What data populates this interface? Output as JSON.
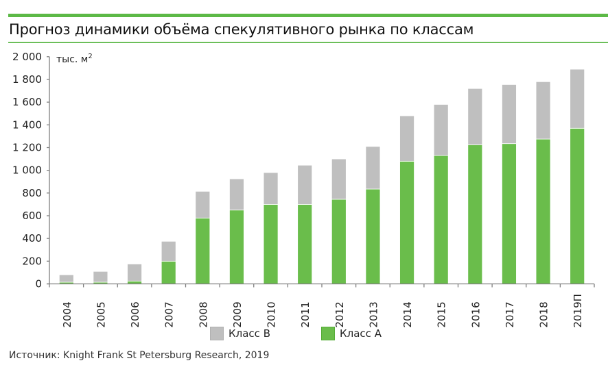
{
  "chart_data": {
    "type": "bar",
    "stacked": true,
    "title": "Прогноз динамики объёма спекулятивного рынка по классам",
    "ylabel": "тыс. м²",
    "ylim": [
      0,
      2000
    ],
    "yticks": [
      0,
      200,
      400,
      600,
      800,
      1000,
      1200,
      1400,
      1600,
      1800,
      2000
    ],
    "ytick_labels": [
      "0",
      "200",
      "400",
      "600",
      "800",
      "1 000",
      "1 200",
      "1 400",
      "1 600",
      "1 800",
      "2 000"
    ],
    "categories": [
      "2004",
      "2005",
      "2006",
      "2007",
      "2008",
      "2009",
      "2010",
      "2011",
      "2012",
      "2013",
      "2014",
      "2015",
      "2016",
      "2017",
      "2018",
      "2019П"
    ],
    "series": [
      {
        "name": "Класс А",
        "color": "#6abd4b",
        "values": [
          15,
          15,
          25,
          200,
          580,
          650,
          700,
          700,
          745,
          835,
          1080,
          1130,
          1225,
          1235,
          1275,
          1370
        ]
      },
      {
        "name": "Класс В",
        "color": "#bfbfbf",
        "values": [
          65,
          95,
          150,
          175,
          235,
          275,
          280,
          345,
          355,
          375,
          400,
          450,
          495,
          520,
          505,
          520
        ]
      }
    ],
    "grid": false,
    "legend_position": "bottom"
  },
  "legend": {
    "class_b": "Класс В",
    "class_a": "Класс А"
  },
  "source": "Источник: Knight Frank St Petersburg Research, 2019",
  "colors": {
    "accent": "#5cb946"
  }
}
